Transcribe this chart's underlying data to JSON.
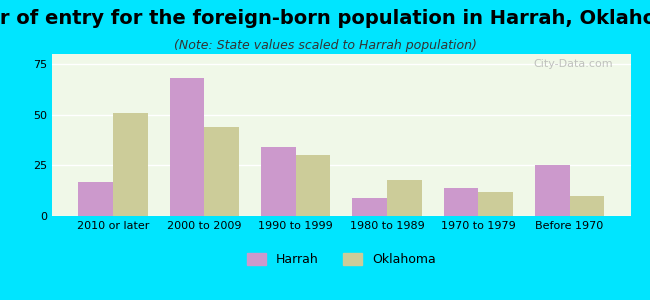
{
  "title": "Year of entry for the foreign-born population in Harrah, Oklahoma",
  "subtitle": "(Note: State values scaled to Harrah population)",
  "categories": [
    "2010 or later",
    "2000 to 2009",
    "1990 to 1999",
    "1980 to 1989",
    "1970 to 1979",
    "Before 1970"
  ],
  "harrah_values": [
    17,
    68,
    34,
    9,
    14,
    25
  ],
  "oklahoma_values": [
    51,
    44,
    30,
    18,
    12,
    10
  ],
  "harrah_color": "#cc99cc",
  "oklahoma_color": "#cccc99",
  "background_outer": "#00e5ff",
  "background_inner": "#f0f8e8",
  "ylim": [
    0,
    80
  ],
  "yticks": [
    0,
    25,
    50,
    75
  ],
  "bar_width": 0.38,
  "title_fontsize": 14,
  "subtitle_fontsize": 9,
  "legend_harrah": "Harrah",
  "legend_oklahoma": "Oklahoma"
}
